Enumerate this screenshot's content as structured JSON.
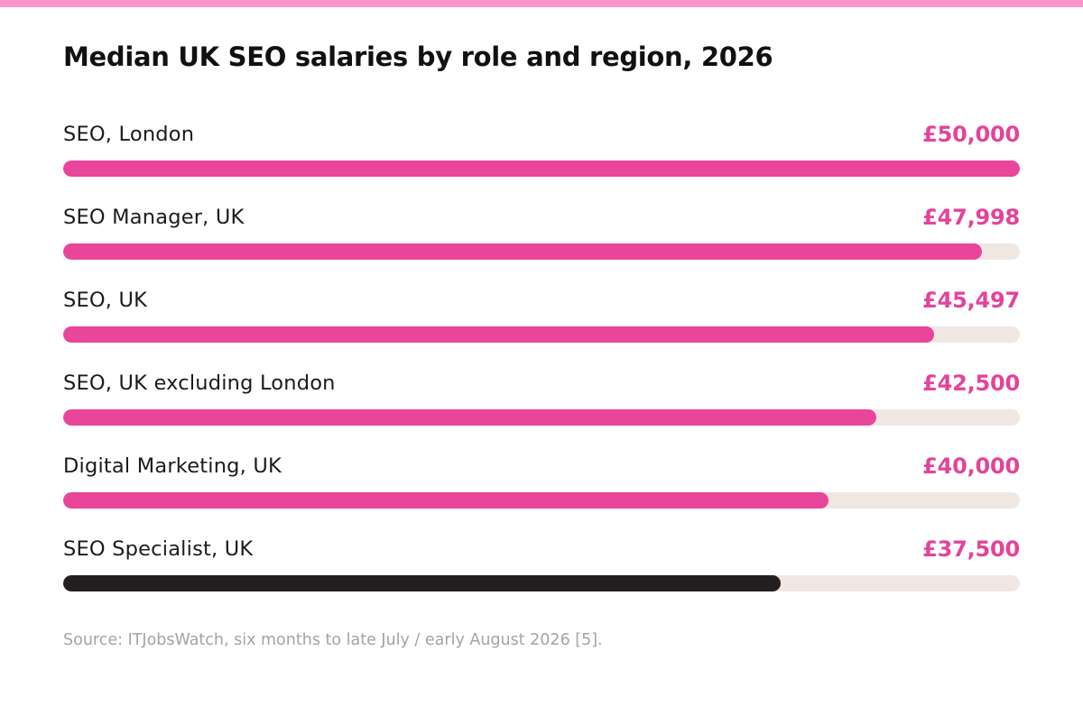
{
  "colors": {
    "accent": "#e8459b",
    "highlight": "#231f20",
    "track": "#f0e7e3",
    "top_strip": "#f794c9"
  },
  "chart_data": {
    "type": "bar",
    "orientation": "horizontal",
    "title": "Median UK SEO salaries by role and region, 2026",
    "categories": [
      "SEO, London",
      "SEO Manager, UK",
      "SEO, UK",
      "SEO, UK excluding London",
      "Digital Marketing, UK",
      "SEO Specialist, UK"
    ],
    "values": [
      50000,
      47998,
      45497,
      42500,
      40000,
      37500
    ],
    "value_labels": [
      "£50,000",
      "£47,998",
      "£45,497",
      "£42,500",
      "£40,000",
      "£37,500"
    ],
    "highlighted_category": "SEO Specialist, UK",
    "xlim": [
      0,
      50000
    ],
    "grid": false,
    "legend": "none",
    "source": "Source: ITJobsWatch, six months to late July / early August 2026 [5]."
  }
}
